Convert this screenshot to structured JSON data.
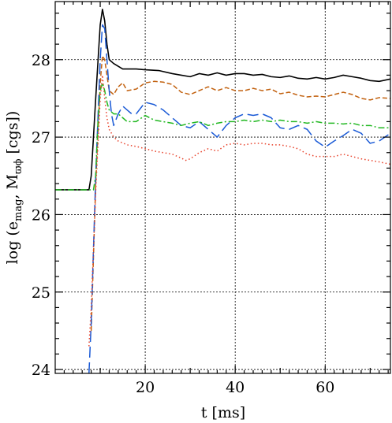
{
  "chart_data": {
    "type": "line",
    "title": "",
    "xlabel": "t [ms]",
    "ylabel_parts": {
      "prefix": "log (e",
      "sub1": "mag",
      "middle": ", M",
      "sub2": "ϖϕ",
      "suffix": " [cgs])"
    },
    "xlim": [
      0,
      74.5
    ],
    "ylim": [
      23.95,
      28.75
    ],
    "xticks": [
      {
        "value": 20,
        "label": "20"
      },
      {
        "value": 40,
        "label": "40"
      },
      {
        "value": 60,
        "label": "60"
      }
    ],
    "yticks": [
      {
        "value": 24,
        "label": "24"
      },
      {
        "value": 25,
        "label": "25"
      },
      {
        "value": 26,
        "label": "26"
      },
      {
        "value": 27,
        "label": "27"
      },
      {
        "value": 28,
        "label": "28"
      }
    ],
    "grid": true,
    "series": [
      {
        "style": "solid",
        "color": "#000000",
        "points": [
          [
            0,
            26.32
          ],
          [
            7.5,
            26.32
          ],
          [
            8,
            26.5
          ],
          [
            9,
            27.5
          ],
          [
            10,
            28.45
          ],
          [
            10.5,
            28.65
          ],
          [
            11,
            28.5
          ],
          [
            11.5,
            28.2
          ],
          [
            12,
            28.0
          ],
          [
            13,
            27.95
          ],
          [
            15,
            27.88
          ],
          [
            18,
            27.88
          ],
          [
            20,
            27.87
          ],
          [
            23,
            27.86
          ],
          [
            26,
            27.82
          ],
          [
            28,
            27.8
          ],
          [
            30,
            27.78
          ],
          [
            32,
            27.82
          ],
          [
            34,
            27.8
          ],
          [
            36,
            27.83
          ],
          [
            38,
            27.8
          ],
          [
            40,
            27.82
          ],
          [
            42,
            27.82
          ],
          [
            44,
            27.8
          ],
          [
            46,
            27.81
          ],
          [
            48,
            27.78
          ],
          [
            50,
            27.77
          ],
          [
            52,
            27.79
          ],
          [
            54,
            27.76
          ],
          [
            56,
            27.75
          ],
          [
            58,
            27.77
          ],
          [
            60,
            27.75
          ],
          [
            62,
            27.77
          ],
          [
            64,
            27.8
          ],
          [
            66,
            27.78
          ],
          [
            68,
            27.76
          ],
          [
            70,
            27.73
          ],
          [
            72,
            27.72
          ],
          [
            74.5,
            27.75
          ]
        ]
      },
      {
        "style": "dashed",
        "color": "#c2610f",
        "points": [
          [
            8,
            24.5
          ],
          [
            9,
            26.4
          ],
          [
            10,
            27.7
          ],
          [
            10.5,
            28.05
          ],
          [
            11,
            28.0
          ],
          [
            11.5,
            27.8
          ],
          [
            12,
            27.6
          ],
          [
            13,
            27.55
          ],
          [
            14,
            27.65
          ],
          [
            15,
            27.7
          ],
          [
            16,
            27.6
          ],
          [
            18,
            27.62
          ],
          [
            20,
            27.7
          ],
          [
            22,
            27.72
          ],
          [
            24,
            27.71
          ],
          [
            26,
            27.68
          ],
          [
            28,
            27.58
          ],
          [
            30,
            27.55
          ],
          [
            32,
            27.6
          ],
          [
            34,
            27.65
          ],
          [
            36,
            27.6
          ],
          [
            38,
            27.64
          ],
          [
            40,
            27.6
          ],
          [
            42,
            27.6
          ],
          [
            44,
            27.63
          ],
          [
            46,
            27.6
          ],
          [
            48,
            27.62
          ],
          [
            50,
            27.56
          ],
          [
            52,
            27.58
          ],
          [
            54,
            27.54
          ],
          [
            56,
            27.52
          ],
          [
            58,
            27.53
          ],
          [
            60,
            27.52
          ],
          [
            62,
            27.55
          ],
          [
            64,
            27.58
          ],
          [
            66,
            27.55
          ],
          [
            68,
            27.5
          ],
          [
            70,
            27.48
          ],
          [
            72,
            27.51
          ],
          [
            74.5,
            27.5
          ]
        ]
      },
      {
        "style": "longdash",
        "color": "#1a5ad6",
        "points": [
          [
            7.5,
            23.95
          ],
          [
            8,
            24.6
          ],
          [
            9,
            26.5
          ],
          [
            10,
            28.0
          ],
          [
            10.5,
            28.45
          ],
          [
            11,
            28.4
          ],
          [
            11.5,
            28.0
          ],
          [
            12,
            27.6
          ],
          [
            12.5,
            27.3
          ],
          [
            13,
            27.15
          ],
          [
            14,
            27.3
          ],
          [
            15,
            27.4
          ],
          [
            16,
            27.35
          ],
          [
            17,
            27.3
          ],
          [
            18,
            27.3
          ],
          [
            20,
            27.45
          ],
          [
            22,
            27.42
          ],
          [
            24,
            27.35
          ],
          [
            26,
            27.25
          ],
          [
            28,
            27.15
          ],
          [
            30,
            27.12
          ],
          [
            32,
            27.2
          ],
          [
            34,
            27.1
          ],
          [
            36,
            27.0
          ],
          [
            38,
            27.15
          ],
          [
            40,
            27.25
          ],
          [
            42,
            27.3
          ],
          [
            44,
            27.28
          ],
          [
            46,
            27.3
          ],
          [
            48,
            27.25
          ],
          [
            50,
            27.12
          ],
          [
            52,
            27.1
          ],
          [
            54,
            27.15
          ],
          [
            56,
            27.1
          ],
          [
            58,
            26.95
          ],
          [
            60,
            26.87
          ],
          [
            62,
            26.95
          ],
          [
            64,
            27.02
          ],
          [
            66,
            27.1
          ],
          [
            68,
            27.05
          ],
          [
            70,
            26.92
          ],
          [
            72,
            26.95
          ],
          [
            74.5,
            27.05
          ]
        ]
      },
      {
        "style": "dashdot",
        "color": "#22b822",
        "points": [
          [
            0,
            26.32
          ],
          [
            8.5,
            26.32
          ],
          [
            9,
            26.5
          ],
          [
            9.5,
            27.2
          ],
          [
            10,
            27.6
          ],
          [
            10.5,
            27.7
          ],
          [
            11,
            27.6
          ],
          [
            11.5,
            27.45
          ],
          [
            12,
            27.35
          ],
          [
            13,
            27.3
          ],
          [
            14,
            27.3
          ],
          [
            15,
            27.25
          ],
          [
            16,
            27.2
          ],
          [
            18,
            27.2
          ],
          [
            20,
            27.28
          ],
          [
            22,
            27.22
          ],
          [
            24,
            27.2
          ],
          [
            26,
            27.18
          ],
          [
            28,
            27.15
          ],
          [
            30,
            27.18
          ],
          [
            32,
            27.2
          ],
          [
            34,
            27.15
          ],
          [
            36,
            27.18
          ],
          [
            38,
            27.2
          ],
          [
            40,
            27.2
          ],
          [
            42,
            27.22
          ],
          [
            44,
            27.2
          ],
          [
            46,
            27.22
          ],
          [
            48,
            27.2
          ],
          [
            50,
            27.22
          ],
          [
            52,
            27.2
          ],
          [
            54,
            27.2
          ],
          [
            56,
            27.18
          ],
          [
            58,
            27.2
          ],
          [
            60,
            27.18
          ],
          [
            62,
            27.18
          ],
          [
            64,
            27.17
          ],
          [
            66,
            27.18
          ],
          [
            68,
            27.15
          ],
          [
            70,
            27.15
          ],
          [
            72,
            27.12
          ],
          [
            74.5,
            27.12
          ]
        ]
      },
      {
        "style": "dotted",
        "color": "#e8412a",
        "points": [
          [
            7.5,
            24.3
          ],
          [
            8,
            24.8
          ],
          [
            9,
            26.3
          ],
          [
            10,
            27.5
          ],
          [
            10.5,
            27.8
          ],
          [
            11,
            27.5
          ],
          [
            11.5,
            27.25
          ],
          [
            12,
            27.1
          ],
          [
            13,
            27.0
          ],
          [
            14,
            26.95
          ],
          [
            16,
            26.9
          ],
          [
            18,
            26.88
          ],
          [
            20,
            26.85
          ],
          [
            22,
            26.82
          ],
          [
            24,
            26.8
          ],
          [
            26,
            26.78
          ],
          [
            28,
            26.73
          ],
          [
            29,
            26.7
          ],
          [
            30,
            26.72
          ],
          [
            32,
            26.8
          ],
          [
            34,
            26.85
          ],
          [
            36,
            26.82
          ],
          [
            38,
            26.9
          ],
          [
            40,
            26.92
          ],
          [
            42,
            26.9
          ],
          [
            44,
            26.92
          ],
          [
            46,
            26.92
          ],
          [
            48,
            26.9
          ],
          [
            50,
            26.9
          ],
          [
            52,
            26.88
          ],
          [
            54,
            26.85
          ],
          [
            56,
            26.78
          ],
          [
            58,
            26.75
          ],
          [
            60,
            26.75
          ],
          [
            62,
            26.75
          ],
          [
            64,
            26.78
          ],
          [
            66,
            26.75
          ],
          [
            68,
            26.72
          ],
          [
            70,
            26.7
          ],
          [
            72,
            26.68
          ],
          [
            74.5,
            26.65
          ]
        ]
      }
    ]
  }
}
